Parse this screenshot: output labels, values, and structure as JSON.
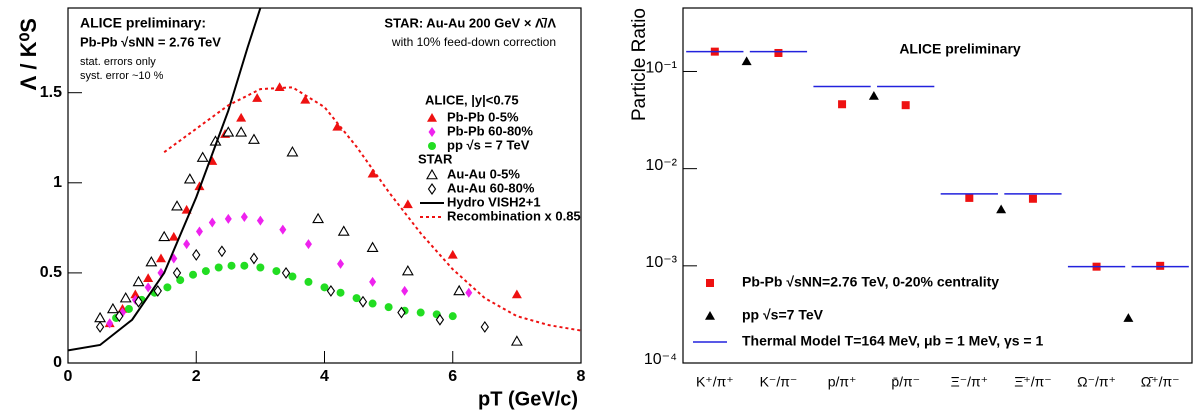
{
  "chart_data": [
    {
      "type": "scatter",
      "annotations": [
        "ALICE preliminary:",
        "Pb-Pb √sNN = 2.76 TeV",
        "stat. errors only",
        "syst. error ~10 %",
        "STAR: Au-Au 200 GeV × Λ̄/Λ",
        "with 10% feed-down correction"
      ],
      "legend_groups": [
        "ALICE, |y|<0.75",
        "STAR"
      ],
      "y_label": "Λ / K⁰S",
      "x_label": "pT (GeV/c)",
      "xlim": [
        0,
        8
      ],
      "xticks": [
        0,
        2,
        4,
        6,
        8
      ],
      "ylim": [
        0,
        1.97
      ],
      "yticks": [
        0,
        0.5,
        1,
        1.5
      ],
      "series": [
        {
          "name": "Pb-Pb 0-5%",
          "color": "#ee1111",
          "marker": "triangle",
          "x": [
            0.65,
            0.85,
            1.05,
            1.25,
            1.45,
            1.65,
            1.85,
            2.05,
            2.25,
            2.45,
            2.7,
            2.95,
            3.3,
            3.7,
            4.2,
            4.75,
            5.3,
            6.0,
            7.0
          ],
          "values": [
            0.22,
            0.3,
            0.38,
            0.47,
            0.58,
            0.7,
            0.85,
            0.98,
            1.12,
            1.27,
            1.36,
            1.47,
            1.53,
            1.46,
            1.31,
            1.05,
            0.88,
            0.6,
            0.38
          ]
        },
        {
          "name": "Pb-Pb 60-80%",
          "color": "#ee22ee",
          "marker": "diamond",
          "x": [
            0.65,
            0.85,
            1.05,
            1.25,
            1.45,
            1.65,
            1.85,
            2.05,
            2.25,
            2.5,
            2.75,
            3.0,
            3.35,
            3.75,
            4.25,
            4.75,
            5.25,
            6.25
          ],
          "values": [
            0.22,
            0.28,
            0.35,
            0.42,
            0.5,
            0.58,
            0.66,
            0.73,
            0.78,
            0.8,
            0.81,
            0.79,
            0.74,
            0.66,
            0.55,
            0.45,
            0.4,
            0.39
          ]
        },
        {
          "name": "pp √s = 7 TeV",
          "color": "#22dd22",
          "marker": "circle",
          "x": [
            0.75,
            0.95,
            1.15,
            1.35,
            1.55,
            1.75,
            1.95,
            2.15,
            2.35,
            2.55,
            2.75,
            3.0,
            3.25,
            3.5,
            3.75,
            4.0,
            4.25,
            4.5,
            4.75,
            5.0,
            5.25,
            5.5,
            5.75,
            6.0
          ],
          "values": [
            0.25,
            0.3,
            0.35,
            0.39,
            0.42,
            0.46,
            0.49,
            0.51,
            0.53,
            0.54,
            0.54,
            0.53,
            0.51,
            0.48,
            0.45,
            0.42,
            0.39,
            0.36,
            0.33,
            0.31,
            0.29,
            0.28,
            0.27,
            0.26
          ]
        },
        {
          "name": "Au-Au 0-5%",
          "color": "#000000",
          "marker": "triangle-open",
          "x": [
            0.5,
            0.7,
            0.9,
            1.1,
            1.3,
            1.5,
            1.7,
            1.9,
            2.1,
            2.3,
            2.5,
            2.7,
            2.9,
            3.5,
            3.9,
            4.3,
            4.75,
            5.3,
            6.1,
            7.0
          ],
          "values": [
            0.25,
            0.3,
            0.36,
            0.45,
            0.56,
            0.7,
            0.87,
            1.02,
            1.14,
            1.23,
            1.28,
            1.28,
            1.24,
            1.17,
            0.8,
            0.73,
            0.64,
            0.51,
            0.4,
            0.12
          ]
        },
        {
          "name": "Au-Au 60-80%",
          "color": "#000000",
          "marker": "diamond-open",
          "x": [
            0.5,
            0.8,
            1.1,
            1.4,
            1.7,
            2.0,
            2.4,
            2.9,
            3.4,
            4.1,
            4.6,
            5.2,
            5.8,
            6.5
          ],
          "values": [
            0.2,
            0.26,
            0.34,
            0.4,
            0.5,
            0.6,
            0.62,
            0.58,
            0.5,
            0.4,
            0.34,
            0.28,
            0.24,
            0.2
          ]
        },
        {
          "name": "Hydro VISH2+1",
          "color": "#000000",
          "marker": "line",
          "x": [
            0.0,
            0.5,
            1.0,
            1.5,
            2.0,
            2.5,
            2.8,
            3.0
          ],
          "values": [
            0.07,
            0.1,
            0.24,
            0.5,
            0.92,
            1.4,
            1.75,
            1.97
          ]
        },
        {
          "name": "Recombination x 0.85",
          "color": "#ee1111",
          "marker": "dashed",
          "x": [
            1.5,
            2.0,
            2.5,
            3.0,
            3.5,
            4.0,
            4.5,
            5.0,
            5.5,
            6.0,
            6.5,
            7.0,
            7.5,
            8.0
          ],
          "values": [
            1.17,
            1.3,
            1.43,
            1.52,
            1.53,
            1.42,
            1.2,
            0.95,
            0.72,
            0.52,
            0.36,
            0.26,
            0.21,
            0.18
          ]
        }
      ]
    },
    {
      "type": "dot",
      "title": "ALICE preliminary",
      "y_label": "Particle Ratio",
      "log_y": true,
      "categories": [
        "K⁺/π⁺",
        "K⁻/π⁻",
        "p/π⁺",
        "p̄/π⁻",
        "Ξ⁻/π⁺",
        "Ξ̄⁺/π⁻",
        "Ω⁻/π⁺",
        "Ω̄⁺/π⁻"
      ],
      "ylim": [
        0.0001,
        0.45
      ],
      "yticks": [
        {
          "value": 0.0001,
          "label": "10⁻⁴"
        },
        {
          "value": 0.001,
          "label": "10⁻³"
        },
        {
          "value": 0.01,
          "label": "10⁻²"
        },
        {
          "value": 0.1,
          "label": "10⁻¹"
        }
      ],
      "series": [
        {
          "name": "Pb-Pb √sNN=2.76 TeV, 0-20% centrality",
          "color": "#ee1111",
          "marker": "square",
          "values": [
            0.16,
            0.155,
            0.046,
            0.045,
            0.005,
            0.0049,
            0.00098,
            0.001
          ]
        },
        {
          "name": "pp √s=7 TeV",
          "color": "#000000",
          "marker": "triangle-between",
          "values": [
            0.127,
            null,
            0.056,
            null,
            0.0038,
            null,
            0.00029,
            null
          ]
        },
        {
          "name": "Thermal Model T=164 MeV, μb = 1 MeV, γs = 1",
          "color": "#2222dd",
          "marker": "hline",
          "values": [
            0.16,
            0.16,
            0.07,
            0.07,
            0.0055,
            0.0055,
            0.00098,
            0.00098
          ]
        }
      ]
    }
  ]
}
